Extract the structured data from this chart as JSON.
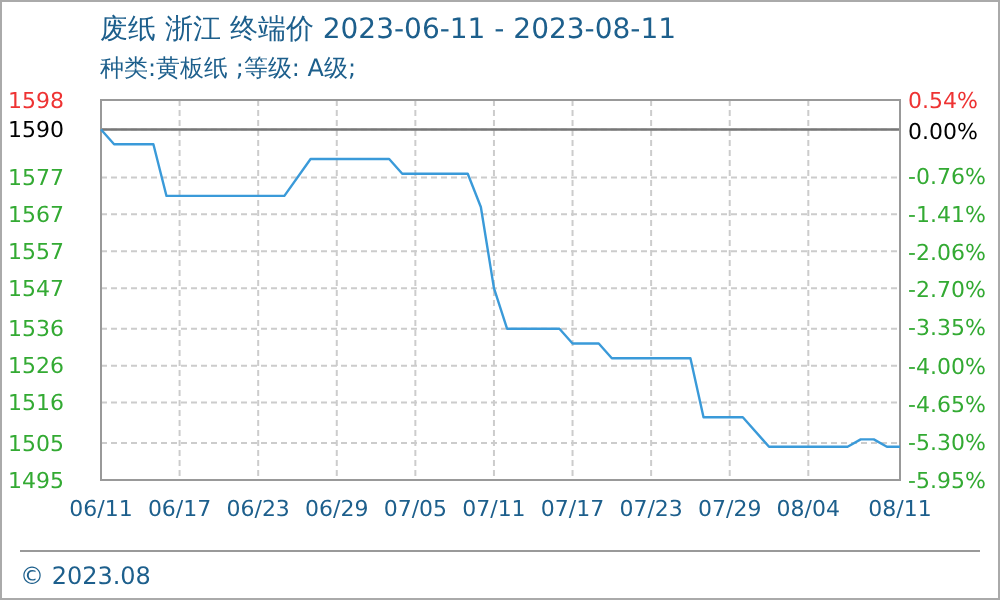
{
  "chart_data": {
    "type": "line",
    "title": "废纸 浙江 终端价 2023-06-11 - 2023-08-11",
    "subtitle": "种类:黄板纸 ;等级: A级;",
    "x": [
      "2023-06-11",
      "2023-06-12",
      "2023-06-15",
      "2023-06-16",
      "2023-06-25",
      "2023-06-27",
      "2023-07-03",
      "2023-07-04",
      "2023-07-09",
      "2023-07-10",
      "2023-07-11",
      "2023-07-12",
      "2023-07-16",
      "2023-07-17",
      "2023-07-19",
      "2023-07-20",
      "2023-07-26",
      "2023-07-27",
      "2023-07-30",
      "2023-08-01",
      "2023-08-07",
      "2023-08-08",
      "2023-08-09",
      "2023-08-10",
      "2023-08-11"
    ],
    "series": [
      {
        "color": "#3a9ad9",
        "values": [
          1590,
          1586,
          1586,
          1572,
          1572,
          1582,
          1582,
          1578,
          1578,
          1569,
          1547,
          1536,
          1536,
          1532,
          1532,
          1528,
          1528,
          1512,
          1512,
          1504,
          1504,
          1506,
          1506,
          1504,
          1504
        ]
      }
    ],
    "xlim": [
      "2023-06-11",
      "2023-08-11"
    ],
    "xticks": [
      {
        "value": "2023-06-11",
        "label": "06/11"
      },
      {
        "value": "2023-06-17",
        "label": "06/17"
      },
      {
        "value": "2023-06-23",
        "label": "06/23"
      },
      {
        "value": "2023-06-29",
        "label": "06/29"
      },
      {
        "value": "2023-07-05",
        "label": "07/05"
      },
      {
        "value": "2023-07-11",
        "label": "07/11"
      },
      {
        "value": "2023-07-17",
        "label": "07/17"
      },
      {
        "value": "2023-07-23",
        "label": "07/23"
      },
      {
        "value": "2023-07-29",
        "label": "07/29"
      },
      {
        "value": "2023-08-04",
        "label": "08/04"
      },
      {
        "value": "2023-08-11",
        "label": "08/11"
      }
    ],
    "ylim": [
      1495,
      1598
    ],
    "yticks": [
      1598,
      1590,
      1577,
      1567,
      1557,
      1547,
      1536,
      1526,
      1516,
      1505,
      1495
    ],
    "y2lim": [
      -5.95,
      0.54
    ],
    "y2ticks": [
      {
        "value": 0.54,
        "label": "0.54%"
      },
      {
        "value": 0,
        "label": "0.00%"
      },
      {
        "value": -0.76,
        "label": "-0.76%"
      },
      {
        "value": -1.41,
        "label": "-1.41%"
      },
      {
        "value": -2.06,
        "label": "-2.06%"
      },
      {
        "value": -2.7,
        "label": "-2.70%"
      },
      {
        "value": -3.35,
        "label": "-3.35%"
      },
      {
        "value": -4,
        "label": "-4.00%"
      },
      {
        "value": -4.65,
        "label": "-4.65%"
      },
      {
        "value": -5.3,
        "label": "-5.30%"
      },
      {
        "value": -5.95,
        "label": "-5.95%"
      }
    ],
    "ref_lines": [
      {
        "axis": "y",
        "value": 1590,
        "label": null,
        "color": "#777777"
      }
    ],
    "grid": true,
    "annotations": [
      "© 2023.08"
    ]
  }
}
